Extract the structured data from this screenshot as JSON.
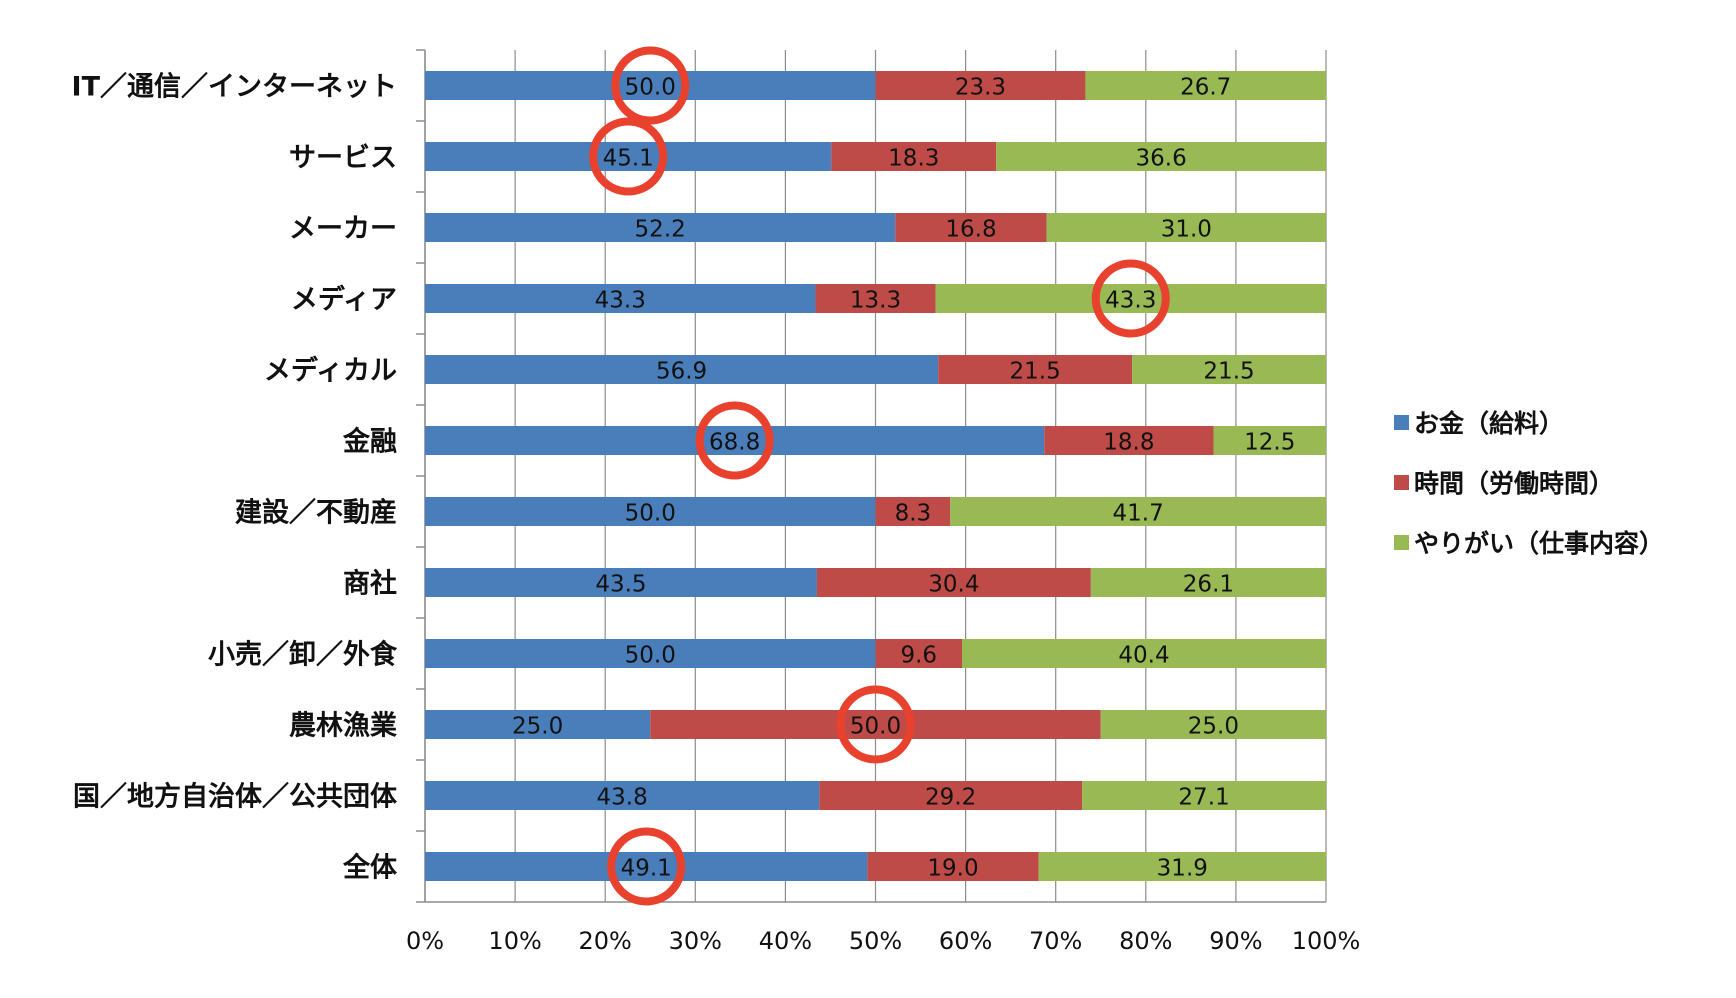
{
  "chart_data": {
    "type": "bar",
    "orientation": "horizontal",
    "stacked": "percent",
    "categories": [
      "IT／通信／インターネット",
      "サービス",
      "メーカー",
      "メディア",
      "メディカル",
      "金融",
      "建設／不動産",
      "商社",
      "小売／卸／外食",
      "農林漁業",
      "国／地方自治体／公共団体",
      "全体"
    ],
    "series": [
      {
        "name": "お金（給料）",
        "color": "#4a7ebb",
        "values": [
          50.0,
          45.1,
          52.2,
          43.3,
          56.9,
          68.8,
          50.0,
          43.5,
          50.0,
          25.0,
          43.8,
          49.1
        ]
      },
      {
        "name": "時間（労働時間）",
        "color": "#be4b48",
        "values": [
          23.3,
          18.3,
          16.8,
          13.3,
          21.5,
          18.8,
          8.3,
          30.4,
          9.6,
          50.0,
          29.2,
          19.0
        ]
      },
      {
        "name": "やりがい（仕事内容）",
        "color": "#98b954",
        "values": [
          26.7,
          36.6,
          31.0,
          43.3,
          21.5,
          12.5,
          41.7,
          26.1,
          40.4,
          25.0,
          27.1,
          31.9
        ]
      }
    ],
    "xaxis": {
      "ticks": [
        "0%",
        "10%",
        "20%",
        "30%",
        "40%",
        "50%",
        "60%",
        "70%",
        "80%",
        "90%",
        "100%"
      ],
      "range": [
        0,
        100
      ]
    },
    "grid": true,
    "legend_position": "right",
    "highlights": [
      {
        "category": "IT／通信／インターネット",
        "series": "お金（給料）"
      },
      {
        "category": "サービス",
        "series": "お金（給料）"
      },
      {
        "category": "メディア",
        "series": "やりがい（仕事内容）"
      },
      {
        "category": "金融",
        "series": "お金（給料）"
      },
      {
        "category": "農林漁業",
        "series": "時間（労働時間）"
      },
      {
        "category": "全体",
        "series": "お金（給料）"
      }
    ],
    "highlight_color": "#e8412e",
    "title": "",
    "xlabel": "",
    "ylabel": ""
  }
}
